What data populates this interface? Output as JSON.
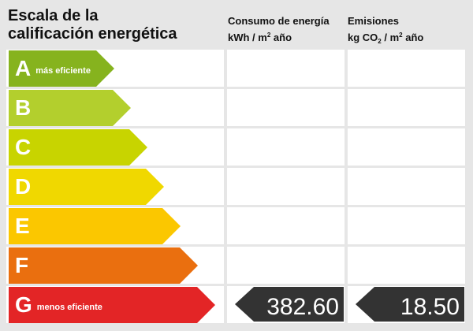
{
  "title": {
    "line1": "Escala de la",
    "line2": "calificación energética"
  },
  "consumo": {
    "line1": "Consumo de energía",
    "unit_a": "kWh / m",
    "unit_sup": "2",
    "unit_b": " año"
  },
  "emisiones": {
    "line1": "Emisiones",
    "unit_a": "kg CO",
    "unit_sub": "2",
    "unit_b": " / m",
    "unit_sup": "2",
    "unit_c": " año"
  },
  "ratings": [
    {
      "letter": "A",
      "note": "más eficiente",
      "color": "#86b31e"
    },
    {
      "letter": "B",
      "note": "",
      "color": "#b3cf2d"
    },
    {
      "letter": "C",
      "note": "",
      "color": "#c8d400"
    },
    {
      "letter": "D",
      "note": "",
      "color": "#f0d800"
    },
    {
      "letter": "E",
      "note": "",
      "color": "#fbc700"
    },
    {
      "letter": "F",
      "note": "",
      "color": "#ea6f0f"
    },
    {
      "letter": "G",
      "note": "menos eficiente",
      "color": "#e32526"
    }
  ],
  "current_rating": "G",
  "consumo_value": "382.60",
  "emisiones_value": "18.50",
  "value_color": "#333333"
}
